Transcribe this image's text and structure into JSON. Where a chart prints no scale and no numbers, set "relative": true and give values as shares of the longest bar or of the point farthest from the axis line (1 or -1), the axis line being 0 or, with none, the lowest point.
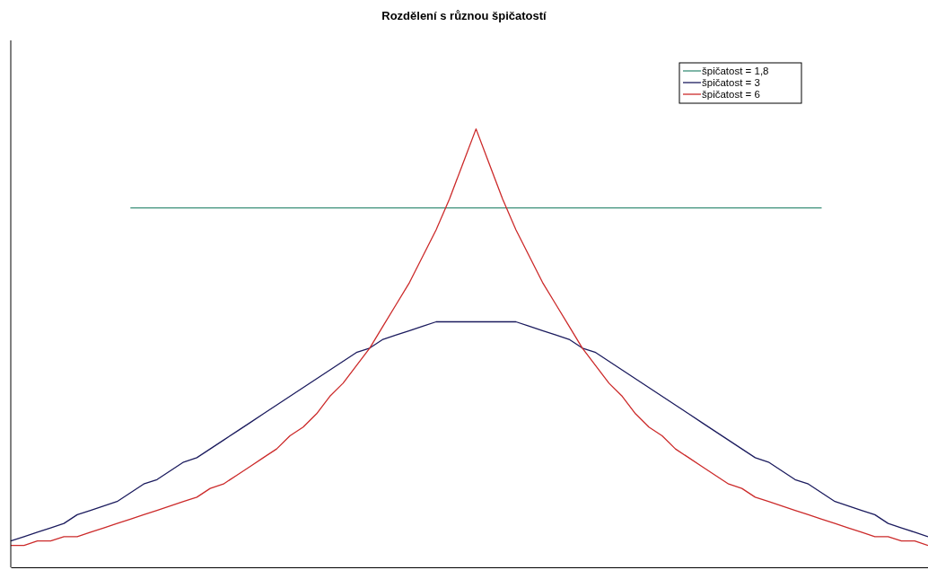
{
  "chart_data": {
    "type": "line",
    "title": "Rozdělení s různou špičatostí",
    "relative": true,
    "legend": "top right",
    "marker": "none",
    "line_style": "solid",
    "grid": false,
    "categories": [
      null,
      null,
      null,
      null,
      null,
      null,
      null,
      null,
      null,
      null,
      null,
      null,
      null,
      null,
      null,
      null,
      null,
      null,
      null,
      null,
      null,
      null,
      null,
      null,
      null,
      null,
      null,
      null,
      null,
      null,
      null,
      null,
      null,
      null,
      null,
      null,
      null,
      null,
      null,
      null,
      null,
      null,
      null,
      null,
      null,
      null,
      null,
      null,
      null,
      null,
      null,
      null,
      null,
      null,
      null,
      null,
      null,
      null,
      null,
      null,
      null,
      null,
      null,
      null,
      null,
      null,
      null,
      null,
      null,
      null
    ],
    "series": [
      {
        "name": "špičatost = 1,8",
        "color": "#3a8f78",
        "values": [
          null,
          null,
          null,
          null,
          null,
          null,
          null,
          null,
          null,
          0.82,
          0.82,
          0.82,
          0.82,
          0.82,
          0.82,
          0.82,
          0.82,
          0.82,
          0.82,
          0.82,
          0.82,
          0.82,
          0.82,
          0.82,
          0.82,
          0.82,
          0.82,
          0.82,
          0.82,
          0.82,
          0.82,
          0.82,
          0.82,
          0.82,
          0.82,
          0.82,
          0.82,
          0.82,
          0.82,
          0.82,
          0.82,
          0.82,
          0.82,
          0.82,
          0.82,
          0.82,
          0.82,
          0.82,
          0.82,
          0.82,
          0.82,
          0.82,
          0.82,
          0.82,
          0.82,
          0.82,
          0.82,
          0.82,
          0.82,
          0.82,
          0.82,
          0.82,
          null,
          null,
          null,
          null,
          null,
          null,
          null,
          null
        ]
      },
      {
        "name": "špičatost = 3",
        "color": "#1b1b5e",
        "values": [
          0.06,
          0.07,
          0.08,
          0.09,
          0.1,
          0.12,
          0.13,
          0.14,
          0.15,
          0.17,
          0.19,
          0.2,
          0.22,
          0.24,
          0.25,
          0.27,
          0.29,
          0.31,
          0.33,
          0.35,
          0.37,
          0.39,
          0.41,
          0.43,
          0.45,
          0.47,
          0.49,
          0.5,
          0.52,
          0.53,
          0.54,
          0.55,
          0.56,
          0.56,
          0.56,
          0.56,
          0.56,
          0.56,
          0.56,
          0.55,
          0.54,
          0.53,
          0.52,
          0.5,
          0.49,
          0.47,
          0.45,
          0.43,
          0.41,
          0.39,
          0.37,
          0.35,
          0.33,
          0.31,
          0.29,
          0.27,
          0.25,
          0.24,
          0.22,
          0.2,
          0.19,
          0.17,
          0.15,
          0.14,
          0.13,
          0.12,
          0.1,
          0.09,
          0.08,
          0.07
        ]
      },
      {
        "name": "špičatost = 6",
        "color": "#cc2a2a",
        "values": [
          0.05,
          0.05,
          0.06,
          0.06,
          0.07,
          0.07,
          0.08,
          0.09,
          0.1,
          0.11,
          0.12,
          0.13,
          0.14,
          0.15,
          0.16,
          0.18,
          0.19,
          0.21,
          0.23,
          0.25,
          0.27,
          0.3,
          0.32,
          0.35,
          0.39,
          0.42,
          0.46,
          0.5,
          0.55,
          0.6,
          0.65,
          0.71,
          0.77,
          0.84,
          0.92,
          1,
          0.92,
          0.84,
          0.77,
          0.71,
          0.65,
          0.6,
          0.55,
          0.5,
          0.46,
          0.42,
          0.39,
          0.35,
          0.32,
          0.3,
          0.27,
          0.25,
          0.23,
          0.21,
          0.19,
          0.18,
          0.16,
          0.15,
          0.14,
          0.13,
          0.12,
          0.11,
          0.1,
          0.09,
          0.08,
          0.07,
          0.07,
          0.06,
          0.06,
          0.05
        ]
      }
    ]
  }
}
